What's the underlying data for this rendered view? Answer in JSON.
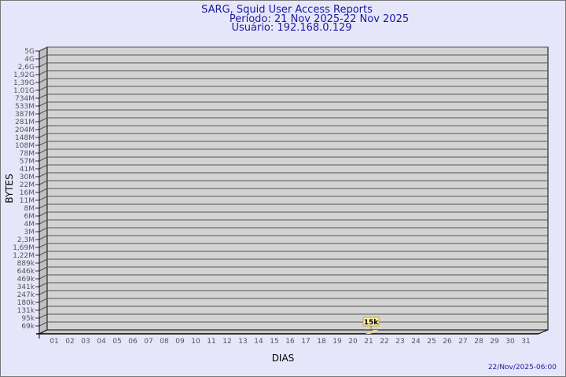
{
  "chart_data": {
    "type": "bar",
    "title": "SARG, Squid User Access Reports",
    "subtitle_lines": [
      "Período: 21 Nov 2025-22 Nov 2025",
      "Usuário: 192.168.0.129"
    ],
    "xlabel": "DIAS",
    "ylabel": "BYTES",
    "y_scale": "log",
    "y_tick_labels": [
      "5G",
      "4G",
      "2,6G",
      "1,92G",
      "1,39G",
      "1,01G",
      "734M",
      "533M",
      "387M",
      "281M",
      "204M",
      "148M",
      "108M",
      "78M",
      "57M",
      "41M",
      "30M",
      "22M",
      "16M",
      "11M",
      "8M",
      "6M",
      "4M",
      "3M",
      "2,3M",
      "1,69M",
      "1,22M",
      "889k",
      "646k",
      "469k",
      "341k",
      "247k",
      "180k",
      "131k",
      "95k",
      "69k"
    ],
    "categories": [
      "01",
      "02",
      "03",
      "04",
      "05",
      "06",
      "07",
      "08",
      "09",
      "10",
      "11",
      "12",
      "13",
      "14",
      "15",
      "16",
      "17",
      "18",
      "19",
      "20",
      "21",
      "22",
      "23",
      "24",
      "25",
      "26",
      "27",
      "28",
      "29",
      "30",
      "31"
    ],
    "bars": [
      {
        "day": "21",
        "value_label": "15k"
      }
    ],
    "grid": true,
    "colors": {
      "background": "#e6e6fa",
      "wall": "#d3d3d3",
      "bar": "#f5e08a",
      "title": "#1a1aa0"
    }
  },
  "footer": {
    "timestamp": "22/Nov/2025-06:00"
  }
}
